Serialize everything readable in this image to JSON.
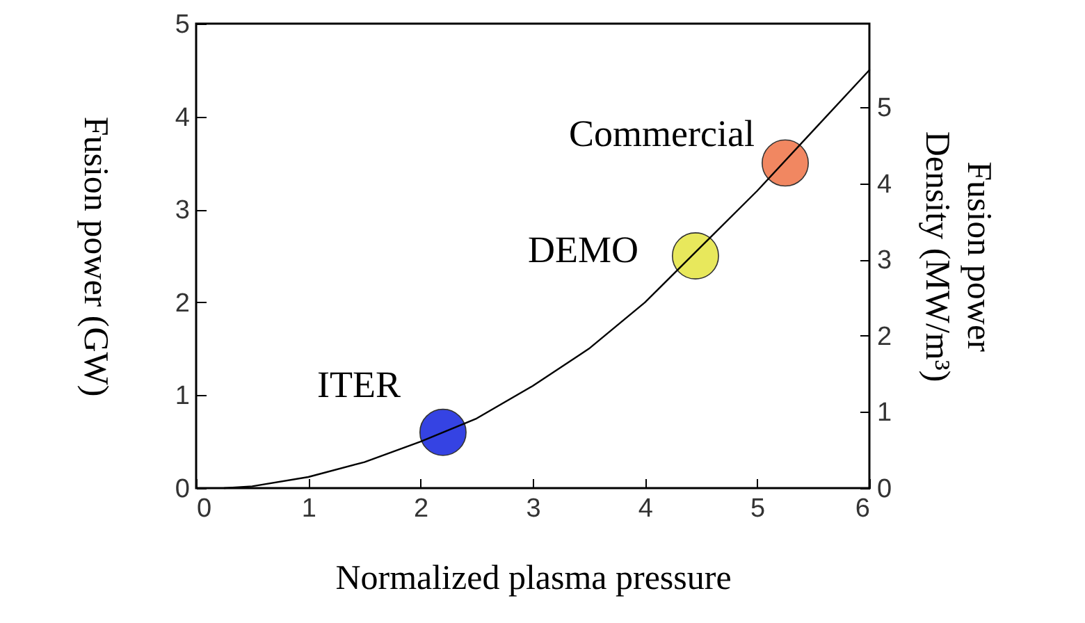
{
  "chart_data": {
    "type": "line",
    "xlabel": "Normalized plasma pressure",
    "ylabel": "Fusion power (GW)",
    "y2label": "Fusion power Density (MW/m³)",
    "xlim": [
      0,
      6
    ],
    "xticks": [
      0,
      1,
      2,
      3,
      4,
      5,
      6
    ],
    "ylim": [
      0,
      5
    ],
    "yticks": [
      0,
      1,
      2,
      3,
      4,
      5
    ],
    "y2lim": [
      0,
      6.1
    ],
    "y2ticks": [
      0,
      1,
      2,
      3,
      4,
      5
    ],
    "grid": false,
    "marker": "circle",
    "series": [
      {
        "color": "#000000",
        "marker": "none",
        "x": [
          0.25,
          0.5,
          1,
          1.5,
          2,
          2.5,
          3,
          3.5,
          4,
          4.5,
          5,
          5.5,
          6
        ],
        "values": [
          0,
          0.02,
          0.12,
          0.28,
          0.5,
          0.75,
          1.1,
          1.5,
          2.0,
          2.6,
          3.2,
          3.85,
          4.5
        ]
      },
      {
        "type": "scatter",
        "name": "ITER",
        "color": "#1f2fe0",
        "x": [
          2.2
        ],
        "values": [
          0.6
        ]
      },
      {
        "type": "scatter",
        "name": "DEMO",
        "color": "#e6e64a",
        "x": [
          4.45
        ],
        "values": [
          2.5
        ]
      },
      {
        "type": "scatter",
        "name": "Commercial",
        "color": "#f07a50",
        "x": [
          5.25
        ],
        "values": [
          3.5
        ]
      }
    ]
  }
}
